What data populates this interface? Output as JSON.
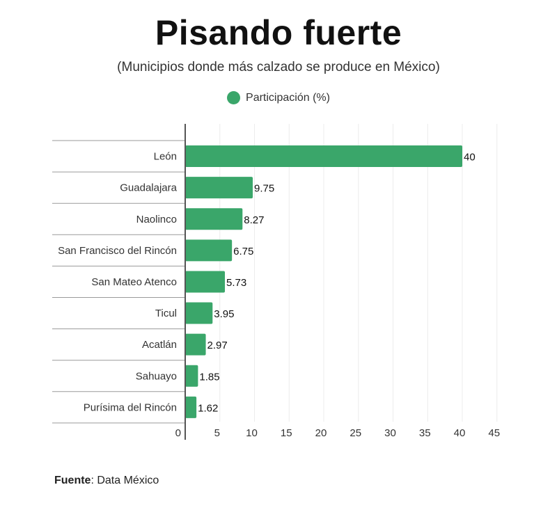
{
  "title": "Pisando fuerte",
  "subtitle": "(Municipios donde más calzado se produce en México)",
  "legend": {
    "label": "Participación (%)",
    "color": "#3aa66a"
  },
  "source": {
    "label": "Fuente",
    "text": ": Data México"
  },
  "chart_data": {
    "type": "bar",
    "orientation": "horizontal",
    "categories": [
      "León",
      "Guadalajara",
      "Naolinco",
      "San Francisco del Rincón",
      "San Mateo Atenco",
      "Ticul",
      "Acatlán",
      "Sahuayo",
      "Purísima del Rincón"
    ],
    "series": [
      {
        "name": "Participación (%)",
        "values": [
          40,
          9.75,
          8.27,
          6.75,
          5.73,
          3.95,
          2.97,
          1.85,
          1.62
        ],
        "color": "#3aa66a"
      }
    ],
    "data_labels": [
      "40",
      "9.75",
      "8.27",
      "6.75",
      "5.73",
      "3.95",
      "2.97",
      "1.85",
      "1.62"
    ],
    "x_ticks": [
      "0",
      "5",
      "10",
      "15",
      "20",
      "25",
      "30",
      "35",
      "40",
      "45"
    ],
    "xlim": [
      0,
      45
    ],
    "grid": true,
    "legend_position": "top-center"
  }
}
